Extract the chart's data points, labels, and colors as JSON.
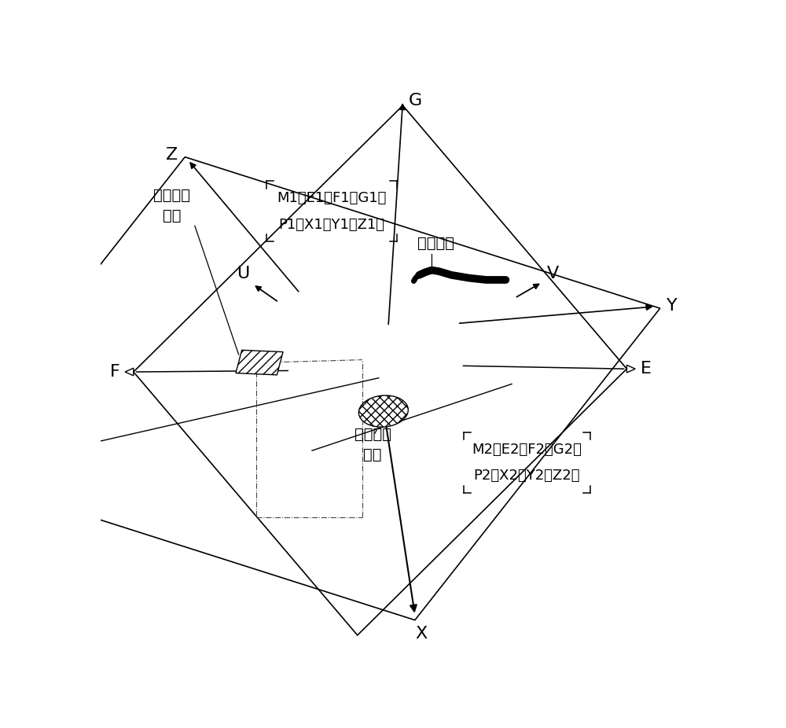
{
  "bg_color": "#ffffff",
  "line_color": "#000000",
  "font_size": 14,
  "annotation1": "第一图像\n模板",
  "annotation2": "第二图像\n模板",
  "annotation3": "点胶轨迹",
  "box1_line1": "M1（E1、F1、G1）",
  "box1_line2": "P1（X1、Y1、Z1）",
  "box2_line1": "M2（E2、F2、G2）",
  "box2_line2": "P2（X2、Y2、Z2）"
}
